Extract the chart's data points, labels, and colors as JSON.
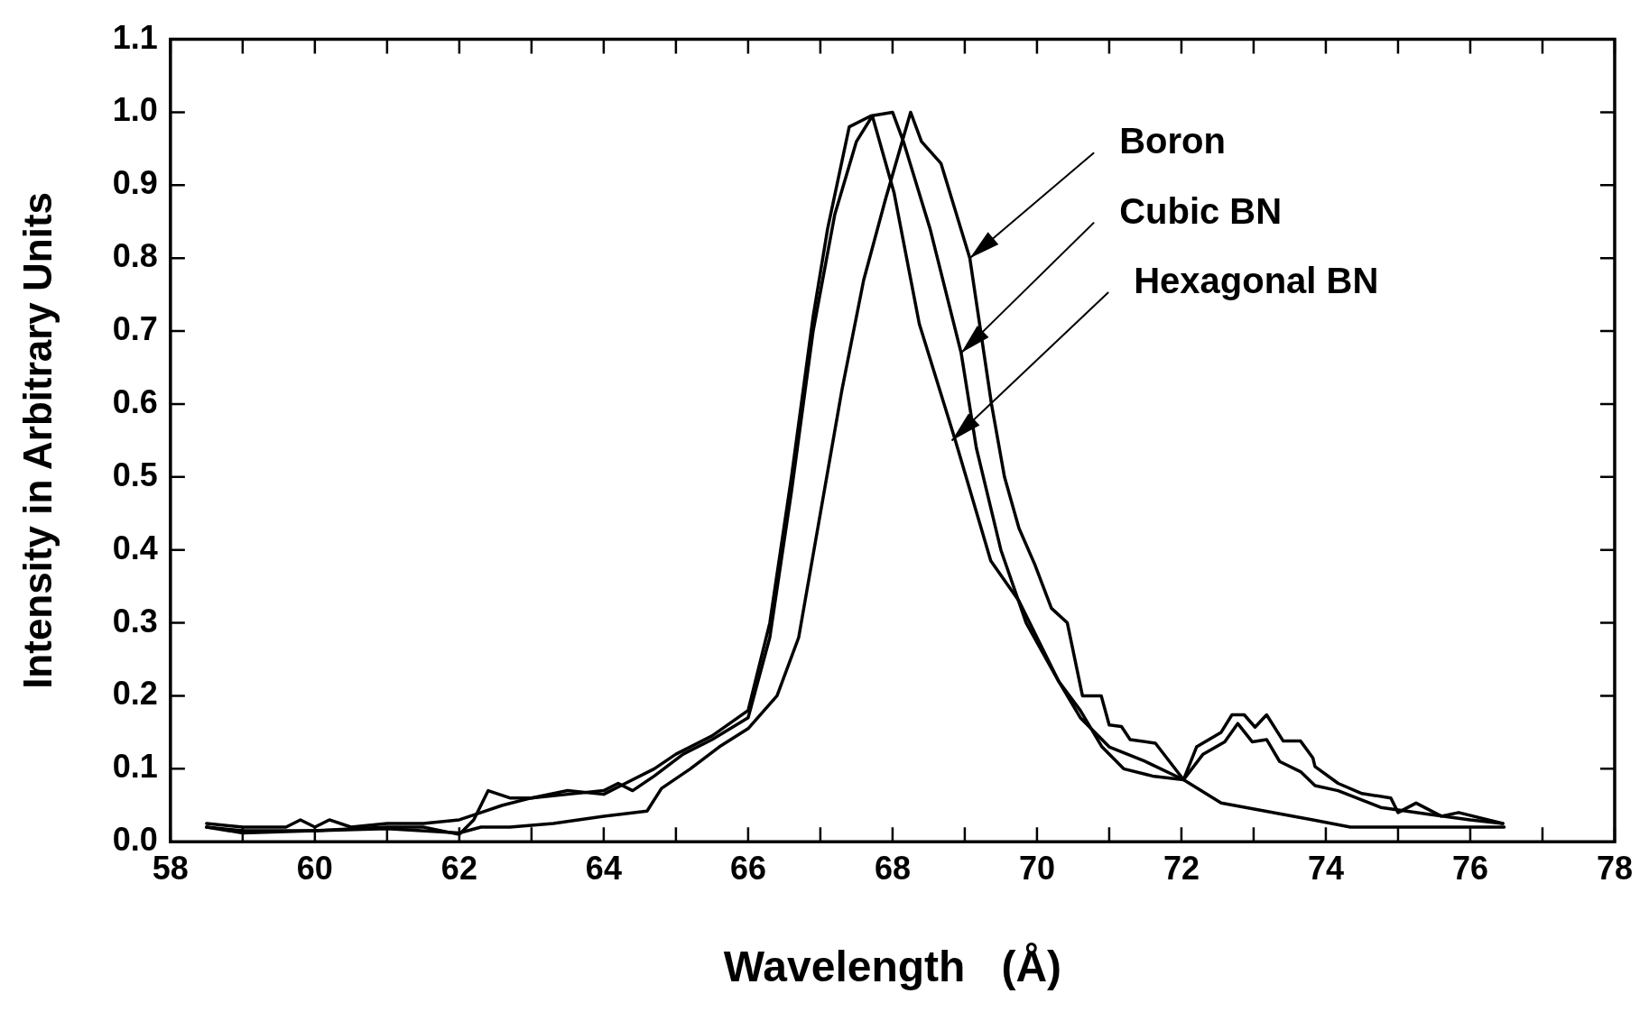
{
  "chart_data": {
    "type": "line",
    "xlabel": "Wavelength   (Å)",
    "ylabel": "Intensity in Arbitrary Units",
    "xlim": [
      58,
      78
    ],
    "ylim": [
      0,
      1.1
    ],
    "xticks": [
      58,
      {
        "value": 59,
        "label": null
      },
      60,
      {
        "value": 61,
        "label": null
      },
      62,
      {
        "value": 63,
        "label": null
      },
      64,
      {
        "value": 65,
        "label": null
      },
      66,
      {
        "value": 67,
        "label": null
      },
      68,
      {
        "value": 69,
        "label": null
      },
      70,
      {
        "value": 71,
        "label": null
      },
      72,
      {
        "value": 73,
        "label": null
      },
      74,
      {
        "value": 75,
        "label": null
      },
      76,
      {
        "value": 77,
        "label": null
      },
      78
    ],
    "yticks": [
      {
        "value": 0,
        "label": "0.0"
      },
      0.1,
      0.2,
      0.3,
      0.4,
      0.5,
      0.6,
      0.7,
      0.8,
      0.9,
      {
        "value": 1,
        "label": "1.0"
      },
      1.1
    ],
    "annotations": [
      {
        "text": "Boron",
        "x": 69.07,
        "y": 0.8
      },
      {
        "text": "Cubic BN",
        "x": 68.95,
        "y": 0.67
      },
      {
        "text": "Hexagonal BN",
        "x": 68.82,
        "y": 0.55
      }
    ],
    "grid": false,
    "legend": false,
    "marker": "none",
    "line_style": "solid",
    "series": [
      {
        "color": "#000000",
        "x": [
          58.5,
          59,
          60,
          61,
          62,
          62.3,
          62.7,
          63.3,
          64,
          64.6,
          64.8,
          65.2,
          65.6,
          66.0,
          66.4,
          66.7,
          67.0,
          67.3,
          67.6,
          67.9,
          68.25,
          68.4,
          68.67,
          69.07,
          69.37,
          69.55,
          69.75,
          69.97,
          70.2,
          70.42,
          70.63,
          70.89,
          71.0,
          71.17,
          71.29,
          71.64,
          72.03,
          72.55,
          73.82,
          74.34,
          76.47
        ],
        "values": [
          0.02,
          0.012,
          0.015,
          0.018,
          0.012,
          0.02,
          0.02,
          0.025,
          0.035,
          0.042,
          0.073,
          0.1,
          0.13,
          0.155,
          0.2,
          0.28,
          0.45,
          0.62,
          0.77,
          0.88,
          1.0,
          0.96,
          0.93,
          0.8,
          0.6,
          0.5,
          0.43,
          0.38,
          0.32,
          0.3,
          0.2,
          0.2,
          0.16,
          0.158,
          0.14,
          0.135,
          0.085,
          0.053,
          0.03,
          0.02,
          0.02
        ]
      },
      {
        "color": "#000000",
        "x": [
          58.5,
          59,
          59.6,
          59.8,
          60,
          60.2,
          60.5,
          61,
          61.5,
          62,
          62.3,
          62.6,
          63,
          63.5,
          64,
          64.3,
          64.7,
          65,
          65.5,
          66,
          66.3,
          66.6,
          66.9,
          67.1,
          67.4,
          67.7,
          68.0,
          68.15,
          68.52,
          68.95,
          69.16,
          69.5,
          69.85,
          70.3,
          70.6,
          70.9,
          71.2,
          71.6,
          72.03,
          72.21,
          72.55,
          72.7,
          72.87,
          73.02,
          73.18,
          73.41,
          73.65,
          73.82,
          73.85,
          74.17,
          74.5,
          74.9,
          75.0,
          75.25,
          75.6,
          75.84,
          76.45
        ],
        "values": [
          0.025,
          0.02,
          0.02,
          0.03,
          0.02,
          0.03,
          0.02,
          0.025,
          0.025,
          0.03,
          0.04,
          0.05,
          0.06,
          0.07,
          0.065,
          0.08,
          0.1,
          0.12,
          0.145,
          0.18,
          0.3,
          0.5,
          0.72,
          0.84,
          0.98,
          0.995,
          1.0,
          0.96,
          0.84,
          0.67,
          0.54,
          0.4,
          0.3,
          0.22,
          0.18,
          0.13,
          0.1,
          0.09,
          0.085,
          0.13,
          0.15,
          0.174,
          0.174,
          0.157,
          0.174,
          0.138,
          0.138,
          0.115,
          0.103,
          0.08,
          0.066,
          0.06,
          0.04,
          0.053,
          0.035,
          0.04,
          0.025
        ]
      },
      {
        "color": "#000000",
        "x": [
          58.5,
          59,
          60,
          61,
          61.5,
          62,
          62.2,
          62.4,
          62.7,
          63,
          63.5,
          64,
          64.2,
          64.4,
          64.7,
          65.1,
          65.5,
          66,
          66.3,
          66.6,
          66.9,
          67.2,
          67.5,
          67.72,
          68.02,
          68.37,
          68.87,
          69.36,
          69.75,
          70.0,
          70.3,
          70.6,
          71.0,
          71.5,
          72.03,
          72.3,
          72.6,
          72.78,
          72.98,
          73.18,
          73.36,
          73.65,
          73.85,
          74.17,
          74.76,
          75.4,
          76.0,
          76.45
        ],
        "values": [
          0.02,
          0.015,
          0.015,
          0.02,
          0.02,
          0.01,
          0.03,
          0.07,
          0.06,
          0.06,
          0.065,
          0.07,
          0.08,
          0.07,
          0.09,
          0.12,
          0.14,
          0.17,
          0.28,
          0.48,
          0.7,
          0.86,
          0.96,
          0.995,
          0.89,
          0.71,
          0.55,
          0.385,
          0.33,
          0.28,
          0.22,
          0.17,
          0.13,
          0.11,
          0.085,
          0.12,
          0.137,
          0.162,
          0.137,
          0.14,
          0.11,
          0.096,
          0.077,
          0.07,
          0.047,
          0.038,
          0.03,
          0.025
        ]
      }
    ]
  }
}
